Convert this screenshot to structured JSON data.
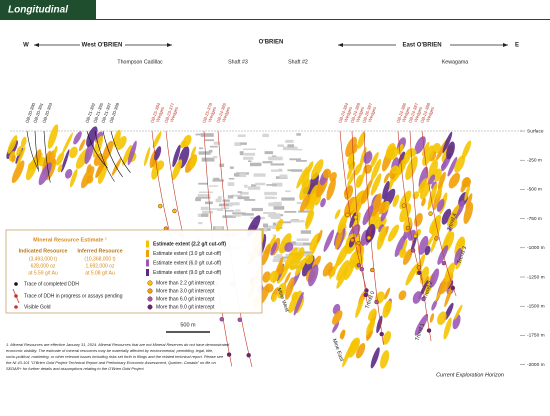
{
  "title": "Longitudinal",
  "zones": {
    "w": "W",
    "west": "West O'BRIEN",
    "center": "O'BRIEN",
    "east": "East O'BRIEN",
    "e": "E"
  },
  "places": [
    "Thompson Cadillac",
    "Shaft #3",
    "Shaft #2",
    "Kewagama"
  ],
  "holes": [
    {
      "id": "OB-20-390"
    },
    {
      "id": "OB-20-391"
    },
    {
      "id": "OB-20-393"
    },
    {
      "id": "OB-21-392"
    },
    {
      "id": "OB-21-395"
    },
    {
      "id": "OB-21-397"
    },
    {
      "id": "OB-20-399"
    },
    {
      "id": "OB-25-384",
      "note": "Wedges"
    },
    {
      "id": "OB-23-377",
      "note": "Wedges"
    },
    {
      "id": "OB-25-378",
      "note": "Wedges"
    },
    {
      "id": "OB-24-385",
      "note": "Wedges"
    },
    {
      "id": "OB-24-384",
      "note": "Wedges"
    },
    {
      "id": "OB-24-389",
      "note": "Wedges"
    },
    {
      "id": "OB-26-387",
      "note": "Wedges"
    },
    {
      "id": "OB-24-386",
      "note": "Wedges"
    },
    {
      "id": "OB-24-387",
      "note": "Wedges"
    },
    {
      "id": "OB-24-388",
      "note": "Wedges"
    }
  ],
  "depths": [
    "Surface",
    "-250 m",
    "-500 m",
    "-750 m",
    "-1000 m",
    "-1250 m",
    "-1500 m",
    "-1750 m",
    "-2000 m"
  ],
  "trends": [
    "Trend 4",
    "Trend 3",
    "Trend 2",
    "Trend 1",
    "Trend 0",
    "Mine West",
    "Mine East"
  ],
  "legend": {
    "heading": "Mineral Resource Estimate ¹",
    "indicated": {
      "label": "Indicated Resource",
      "lines": [
        "(3,493,000 t)",
        "628,000 oz",
        "at 5.59 g/t Au"
      ]
    },
    "inferred": {
      "label": "Inferred Resource",
      "lines": [
        "(10,368,000 t)",
        "1,692,000 oz",
        "at 5.08 g/t Au"
      ]
    },
    "traces": [
      "Trace of completed DDH",
      "Trace of DDH in progress or assays pending",
      "Visible Gold"
    ],
    "extents": [
      "Estimate extent (2.2 g/t cut-off)",
      "Estimate extent (3.0 g/t cut-off)",
      "Estimate extent (6.0 g/t cut-off)",
      "Estimate extent (9.0 g/t cut-off)"
    ],
    "intercepts": [
      "More than 2.2 g/t intercept",
      "More than 3.0 g/t intercept",
      "More than 6.0 g/t intercept",
      "More than 9.0 g/t intercept"
    ]
  },
  "scale": "500 m",
  "horizon": "Current Exploration Horizon",
  "footnote": [
    "1. Mineral Resources are effective January 31, 2024. Mineral Resources that are not Mineral Reserves do not have demonstrated",
    "economic viability. The estimate of mineral resources may be materially affected by environmental, permitting, legal, title,",
    "socio-political, marketing, or other relevant issues including risks set forth in filings and the related technical report. Please see",
    "the NI 43-101 \"O'Brien Gold Project Technical Report and Preliminary Economic Assessment, Quebec, Canada\" on file on",
    "SEDAR+ for further details and assumptions relating to the O'Brien Gold Project."
  ]
}
